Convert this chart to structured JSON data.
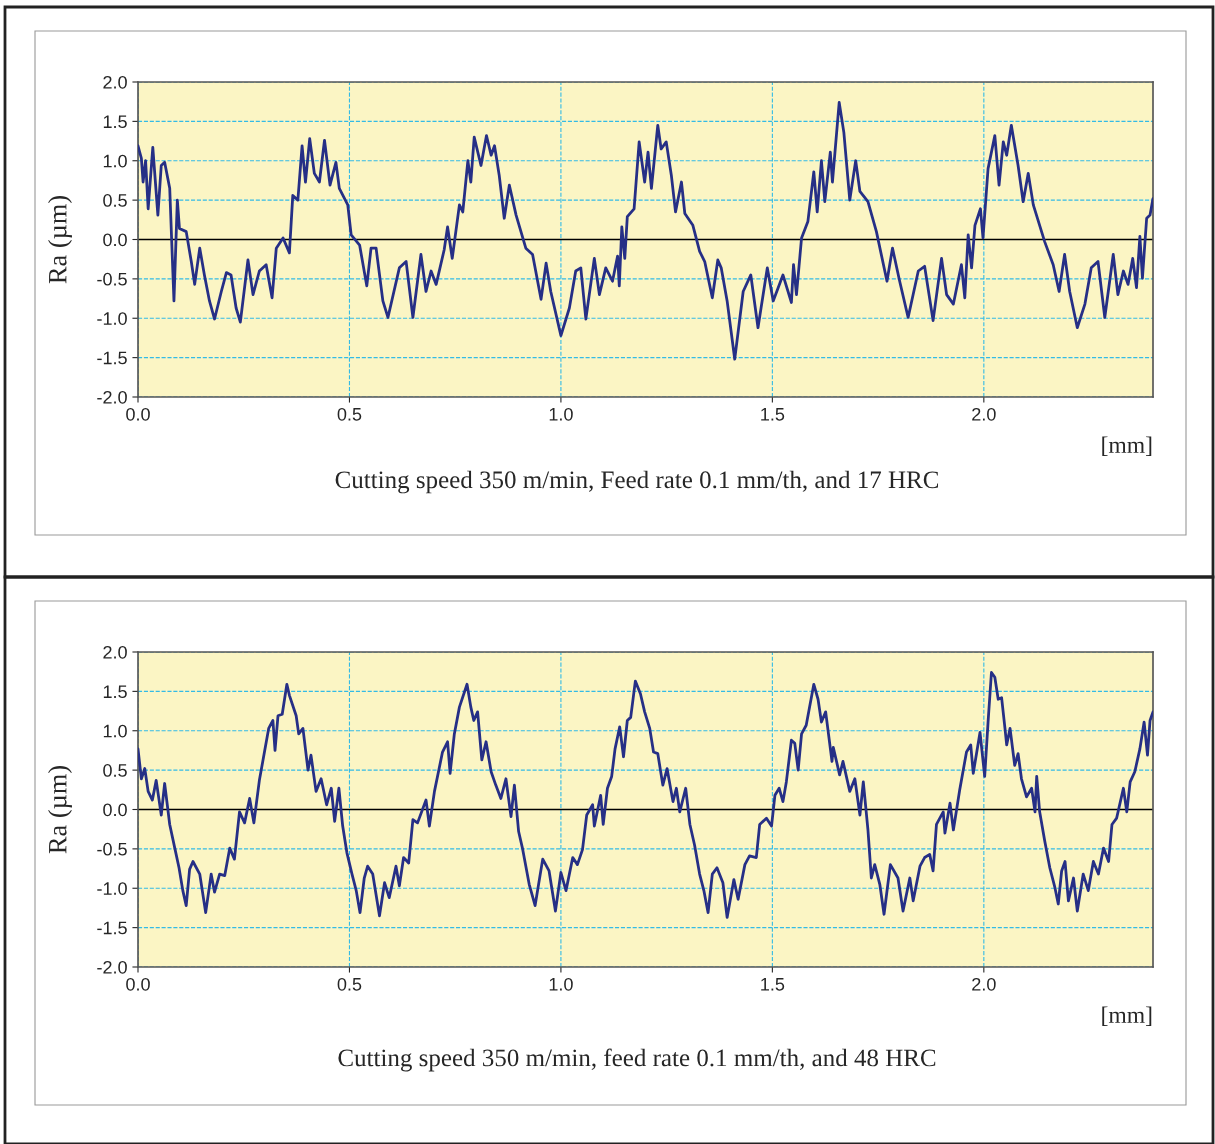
{
  "chart_data": [
    {
      "type": "line",
      "title": "Cutting speed 350 m/min, Feed rate 0.1 mm/th, and 17 HRC",
      "xlabel": "[mm]",
      "ylabel": "Ra (µm)",
      "xlim": [
        0,
        2.4
      ],
      "xticks": [
        {
          "value": 0,
          "label": "0.0"
        },
        {
          "value": 0.5,
          "label": "0.5"
        },
        {
          "value": 1,
          "label": "1.0"
        },
        {
          "value": 1.5,
          "label": "1.5"
        },
        {
          "value": 2,
          "label": "2.0"
        }
      ],
      "ylim": [
        -2,
        2
      ],
      "yticks": [
        {
          "value": -2,
          "label": "-2.0"
        },
        {
          "value": -1.5,
          "label": "-1.5"
        },
        {
          "value": -1,
          "label": "-1.0"
        },
        {
          "value": -0.5,
          "label": "-0.5"
        },
        {
          "value": 0,
          "label": "0.0"
        },
        {
          "value": 0.5,
          "label": "0.5"
        },
        {
          "value": 1,
          "label": "1.0"
        },
        {
          "value": 1.5,
          "label": "1.5"
        },
        {
          "value": 2,
          "label": "2.0"
        }
      ],
      "grid": true,
      "ref_lines": [
        {
          "axis": "y",
          "value": 0,
          "color": "#000000"
        }
      ],
      "line_style": "solid",
      "marker": "none",
      "series": [
        {
          "color": "#262f86",
          "x": [
            0,
            0.008,
            0.012,
            0.018,
            0.024,
            0.035,
            0.047,
            0.055,
            0.063,
            0.075,
            0.085,
            0.093,
            0.098,
            0.114,
            0.126,
            0.134,
            0.146,
            0.157,
            0.169,
            0.181,
            0.197,
            0.209,
            0.22,
            0.232,
            0.242,
            0.26,
            0.272,
            0.287,
            0.303,
            0.317,
            0.327,
            0.343,
            0.358,
            0.366,
            0.378,
            0.388,
            0.396,
            0.406,
            0.417,
            0.429,
            0.441,
            0.454,
            0.468,
            0.476,
            0.496,
            0.504,
            0.524,
            0.541,
            0.551,
            0.563,
            0.579,
            0.591,
            0.618,
            0.634,
            0.65,
            0.669,
            0.681,
            0.693,
            0.705,
            0.724,
            0.732,
            0.743,
            0.76,
            0.768,
            0.78,
            0.787,
            0.795,
            0.811,
            0.824,
            0.835,
            0.843,
            0.854,
            0.866,
            0.878,
            0.894,
            0.917,
            0.933,
            0.953,
            0.965,
            0.976,
            1.0,
            1.02,
            1.035,
            1.047,
            1.059,
            1.079,
            1.091,
            1.106,
            1.122,
            1.134,
            1.138,
            1.144,
            1.151,
            1.157,
            1.173,
            1.185,
            1.198,
            1.206,
            1.214,
            1.229,
            1.237,
            1.249,
            1.261,
            1.271,
            1.285,
            1.293,
            1.312,
            1.328,
            1.34,
            1.358,
            1.371,
            1.379,
            1.393,
            1.411,
            1.431,
            1.449,
            1.466,
            1.488,
            1.502,
            1.525,
            1.545,
            1.55,
            1.557,
            1.569,
            1.584,
            1.598,
            1.606,
            1.616,
            1.624,
            1.637,
            1.642,
            1.658,
            1.669,
            1.683,
            1.697,
            1.707,
            1.726,
            1.746,
            1.771,
            1.784,
            1.801,
            1.821,
            1.845,
            1.86,
            1.88,
            1.9,
            1.912,
            1.928,
            1.947,
            1.955,
            1.963,
            1.971,
            1.979,
            1.992,
            1.998,
            2.01,
            2.026,
            2.036,
            2.046,
            2.054,
            2.065,
            2.081,
            2.093,
            2.105,
            2.117,
            2.144,
            2.164,
            2.178,
            2.191,
            2.203,
            2.221,
            2.239,
            2.254,
            2.27,
            2.286,
            2.306,
            2.317,
            2.33,
            2.341,
            2.352,
            2.361,
            2.369,
            2.375,
            2.385,
            2.393,
            2.4
          ],
          "values": [
            1.19,
            1.03,
            0.73,
            1.0,
            0.39,
            1.17,
            0.31,
            0.94,
            0.98,
            0.65,
            -0.78,
            0.5,
            0.14,
            0.1,
            -0.28,
            -0.57,
            -0.11,
            -0.45,
            -0.78,
            -1.01,
            -0.66,
            -0.42,
            -0.45,
            -0.87,
            -1.05,
            -0.26,
            -0.7,
            -0.4,
            -0.32,
            -0.74,
            -0.11,
            0.02,
            -0.17,
            0.56,
            0.5,
            1.19,
            0.73,
            1.28,
            0.84,
            0.73,
            1.26,
            0.69,
            0.98,
            0.65,
            0.44,
            0.06,
            -0.07,
            -0.59,
            -0.11,
            -0.11,
            -0.78,
            -0.99,
            -0.36,
            -0.28,
            -0.99,
            -0.19,
            -0.66,
            -0.4,
            -0.57,
            -0.13,
            0.16,
            -0.24,
            0.44,
            0.35,
            1.0,
            0.73,
            1.3,
            0.94,
            1.32,
            1.07,
            1.19,
            0.82,
            0.27,
            0.69,
            0.31,
            -0.11,
            -0.19,
            -0.76,
            -0.3,
            -0.66,
            -1.22,
            -0.87,
            -0.4,
            -0.36,
            -1.01,
            -0.24,
            -0.7,
            -0.36,
            -0.53,
            -0.21,
            -0.59,
            0.16,
            -0.24,
            0.29,
            0.39,
            1.24,
            0.73,
            1.11,
            0.65,
            1.45,
            1.15,
            1.24,
            0.82,
            0.35,
            0.73,
            0.33,
            0.18,
            -0.15,
            -0.28,
            -0.74,
            -0.26,
            -0.36,
            -0.78,
            -1.52,
            -0.66,
            -0.45,
            -1.12,
            -0.36,
            -0.78,
            -0.45,
            -0.8,
            -0.32,
            -0.7,
            0.02,
            0.23,
            0.86,
            0.35,
            1.0,
            0.48,
            1.11,
            0.73,
            1.74,
            1.36,
            0.5,
            1.0,
            0.61,
            0.48,
            0.1,
            -0.53,
            -0.11,
            -0.53,
            -0.99,
            -0.4,
            -0.34,
            -1.03,
            -0.24,
            -0.7,
            -0.82,
            -0.32,
            -0.74,
            0.06,
            -0.36,
            0.18,
            0.39,
            0.02,
            0.9,
            1.32,
            0.69,
            1.24,
            1.07,
            1.45,
            0.94,
            0.48,
            0.84,
            0.44,
            -0.03,
            -0.32,
            -0.66,
            -0.19,
            -0.66,
            -1.12,
            -0.82,
            -0.36,
            -0.28,
            -0.99,
            -0.19,
            -0.7,
            -0.4,
            -0.57,
            -0.24,
            -0.61,
            0.04,
            -0.49,
            0.27,
            0.31,
            0.52
          ]
        }
      ]
    },
    {
      "type": "line",
      "title": "Cutting speed 350 m/min, feed rate 0.1 mm/th, and 48 HRC",
      "xlabel": "[mm]",
      "ylabel": "Ra (µm)",
      "xlim": [
        0,
        2.4
      ],
      "xticks": [
        {
          "value": 0,
          "label": "0.0"
        },
        {
          "value": 0.5,
          "label": "0.5"
        },
        {
          "value": 1,
          "label": "1.0"
        },
        {
          "value": 1.5,
          "label": "1.5"
        },
        {
          "value": 2,
          "label": "2.0"
        }
      ],
      "ylim": [
        -2,
        2
      ],
      "yticks": [
        {
          "value": -2,
          "label": "-2.0"
        },
        {
          "value": -1.5,
          "label": "-1.5"
        },
        {
          "value": -1,
          "label": "-1.0"
        },
        {
          "value": -0.5,
          "label": "-0.5"
        },
        {
          "value": 0,
          "label": "0.0"
        },
        {
          "value": 0.5,
          "label": "0.5"
        },
        {
          "value": 1,
          "label": "1.0"
        },
        {
          "value": 1.5,
          "label": "1.5"
        },
        {
          "value": 2,
          "label": "2.0"
        }
      ],
      "grid": true,
      "ref_lines": [
        {
          "axis": "y",
          "value": 0,
          "color": "#000000"
        }
      ],
      "line_style": "solid",
      "marker": "none",
      "series": [
        {
          "color": "#262f86",
          "x": [
            0,
            0.008,
            0.016,
            0.024,
            0.034,
            0.043,
            0.055,
            0.063,
            0.075,
            0.087,
            0.097,
            0.106,
            0.114,
            0.122,
            0.13,
            0.146,
            0.16,
            0.173,
            0.181,
            0.193,
            0.205,
            0.217,
            0.228,
            0.24,
            0.252,
            0.264,
            0.274,
            0.287,
            0.299,
            0.309,
            0.319,
            0.324,
            0.331,
            0.341,
            0.352,
            0.358,
            0.374,
            0.38,
            0.39,
            0.402,
            0.409,
            0.421,
            0.433,
            0.446,
            0.457,
            0.465,
            0.475,
            0.484,
            0.494,
            0.506,
            0.516,
            0.525,
            0.535,
            0.543,
            0.555,
            0.571,
            0.583,
            0.594,
            0.61,
            0.618,
            0.628,
            0.64,
            0.65,
            0.661,
            0.681,
            0.689,
            0.701,
            0.72,
            0.732,
            0.738,
            0.748,
            0.76,
            0.778,
            0.787,
            0.794,
            0.803,
            0.813,
            0.823,
            0.835,
            0.846,
            0.858,
            0.87,
            0.882,
            0.89,
            0.9,
            0.909,
            0.925,
            0.939,
            0.957,
            0.972,
            0.987,
            1.0,
            1.012,
            1.028,
            1.039,
            1.051,
            1.061,
            1.075,
            1.079,
            1.094,
            1.1,
            1.11,
            1.12,
            1.128,
            1.139,
            1.148,
            1.157,
            1.165,
            1.176,
            1.188,
            1.198,
            1.21,
            1.219,
            1.229,
            1.241,
            1.251,
            1.265,
            1.273,
            1.281,
            1.295,
            1.305,
            1.316,
            1.328,
            1.338,
            1.348,
            1.358,
            1.369,
            1.383,
            1.393,
            1.409,
            1.419,
            1.435,
            1.446,
            1.462,
            1.47,
            1.486,
            1.498,
            1.506,
            1.516,
            1.525,
            1.533,
            1.545,
            1.553,
            1.561,
            1.569,
            1.58,
            1.598,
            1.608,
            1.616,
            1.626,
            1.641,
            1.644,
            1.659,
            1.667,
            1.683,
            1.695,
            1.707,
            1.715,
            1.726,
            1.734,
            1.742,
            1.754,
            1.764,
            1.779,
            1.797,
            1.809,
            1.825,
            1.833,
            1.849,
            1.86,
            1.872,
            1.88,
            1.888,
            1.904,
            1.908,
            1.92,
            1.928,
            1.943,
            1.959,
            1.969,
            1.975,
            1.991,
            2.002,
            2.01,
            2.018,
            2.026,
            2.034,
            2.042,
            2.05,
            2.054,
            2.062,
            2.073,
            2.081,
            2.089,
            2.101,
            2.113,
            2.121,
            2.125,
            2.132,
            2.144,
            2.156,
            2.168,
            2.176,
            2.184,
            2.192,
            2.2,
            2.212,
            2.221,
            2.235,
            2.247,
            2.259,
            2.271,
            2.283,
            2.295,
            2.303,
            2.314,
            2.33,
            2.338,
            2.346,
            2.357,
            2.369,
            2.379,
            2.387,
            2.393,
            2.4
          ],
          "values": [
            0.77,
            0.39,
            0.52,
            0.23,
            0.12,
            0.37,
            -0.07,
            0.33,
            -0.19,
            -0.49,
            -0.74,
            -1.03,
            -1.22,
            -0.76,
            -0.66,
            -0.82,
            -1.31,
            -0.82,
            -1.05,
            -0.82,
            -0.84,
            -0.49,
            -0.63,
            -0.03,
            -0.17,
            0.14,
            -0.17,
            0.37,
            0.73,
            1.03,
            1.13,
            0.75,
            1.19,
            1.21,
            1.59,
            1.45,
            1.19,
            0.96,
            1.03,
            0.5,
            0.69,
            0.23,
            0.39,
            0.06,
            0.27,
            -0.15,
            0.27,
            -0.21,
            -0.55,
            -0.82,
            -1.03,
            -1.31,
            -0.87,
            -0.72,
            -0.82,
            -1.35,
            -0.93,
            -1.12,
            -0.72,
            -0.97,
            -0.61,
            -0.68,
            -0.13,
            -0.17,
            0.12,
            -0.21,
            0.23,
            0.73,
            0.86,
            0.46,
            0.96,
            1.3,
            1.59,
            1.3,
            1.13,
            1.24,
            0.63,
            0.86,
            0.48,
            0.31,
            0.14,
            0.39,
            -0.09,
            0.31,
            -0.28,
            -0.49,
            -0.95,
            -1.22,
            -0.63,
            -0.78,
            -1.29,
            -0.8,
            -1.03,
            -0.61,
            -0.7,
            -0.51,
            -0.07,
            0.06,
            -0.21,
            0.18,
            -0.19,
            0.27,
            0.42,
            0.77,
            1.05,
            0.67,
            1.13,
            1.17,
            1.63,
            1.47,
            1.24,
            1.03,
            0.73,
            0.71,
            0.31,
            0.52,
            0.1,
            0.27,
            -0.03,
            0.27,
            -0.19,
            -0.45,
            -0.82,
            -1.03,
            -1.31,
            -0.82,
            -0.74,
            -0.93,
            -1.37,
            -0.89,
            -1.14,
            -0.7,
            -0.59,
            -0.61,
            -0.19,
            -0.11,
            -0.21,
            0.18,
            0.27,
            0.1,
            0.35,
            0.88,
            0.84,
            0.5,
            0.96,
            1.07,
            1.59,
            1.4,
            1.11,
            1.24,
            0.61,
            0.79,
            0.44,
            0.61,
            0.23,
            0.39,
            -0.07,
            0.35,
            -0.26,
            -0.87,
            -0.7,
            -0.95,
            -1.33,
            -0.7,
            -0.87,
            -1.29,
            -0.87,
            -1.16,
            -0.72,
            -0.61,
            -0.57,
            -0.78,
            -0.19,
            -0.03,
            -0.3,
            0.08,
            -0.26,
            0.25,
            0.73,
            0.82,
            0.46,
            0.98,
            0.42,
            1.11,
            1.74,
            1.68,
            1.4,
            1.42,
            1.03,
            0.82,
            1.03,
            0.56,
            0.71,
            0.39,
            0.16,
            0.27,
            -0.03,
            0.42,
            -0.03,
            -0.4,
            -0.74,
            -0.99,
            -1.2,
            -0.78,
            -0.66,
            -1.16,
            -0.87,
            -1.29,
            -0.82,
            -1.03,
            -0.66,
            -0.82,
            -0.49,
            -0.66,
            -0.19,
            -0.11,
            0.27,
            -0.03,
            0.35,
            0.48,
            0.77,
            1.11,
            0.69,
            1.13,
            1.24
          ]
        }
      ]
    }
  ]
}
